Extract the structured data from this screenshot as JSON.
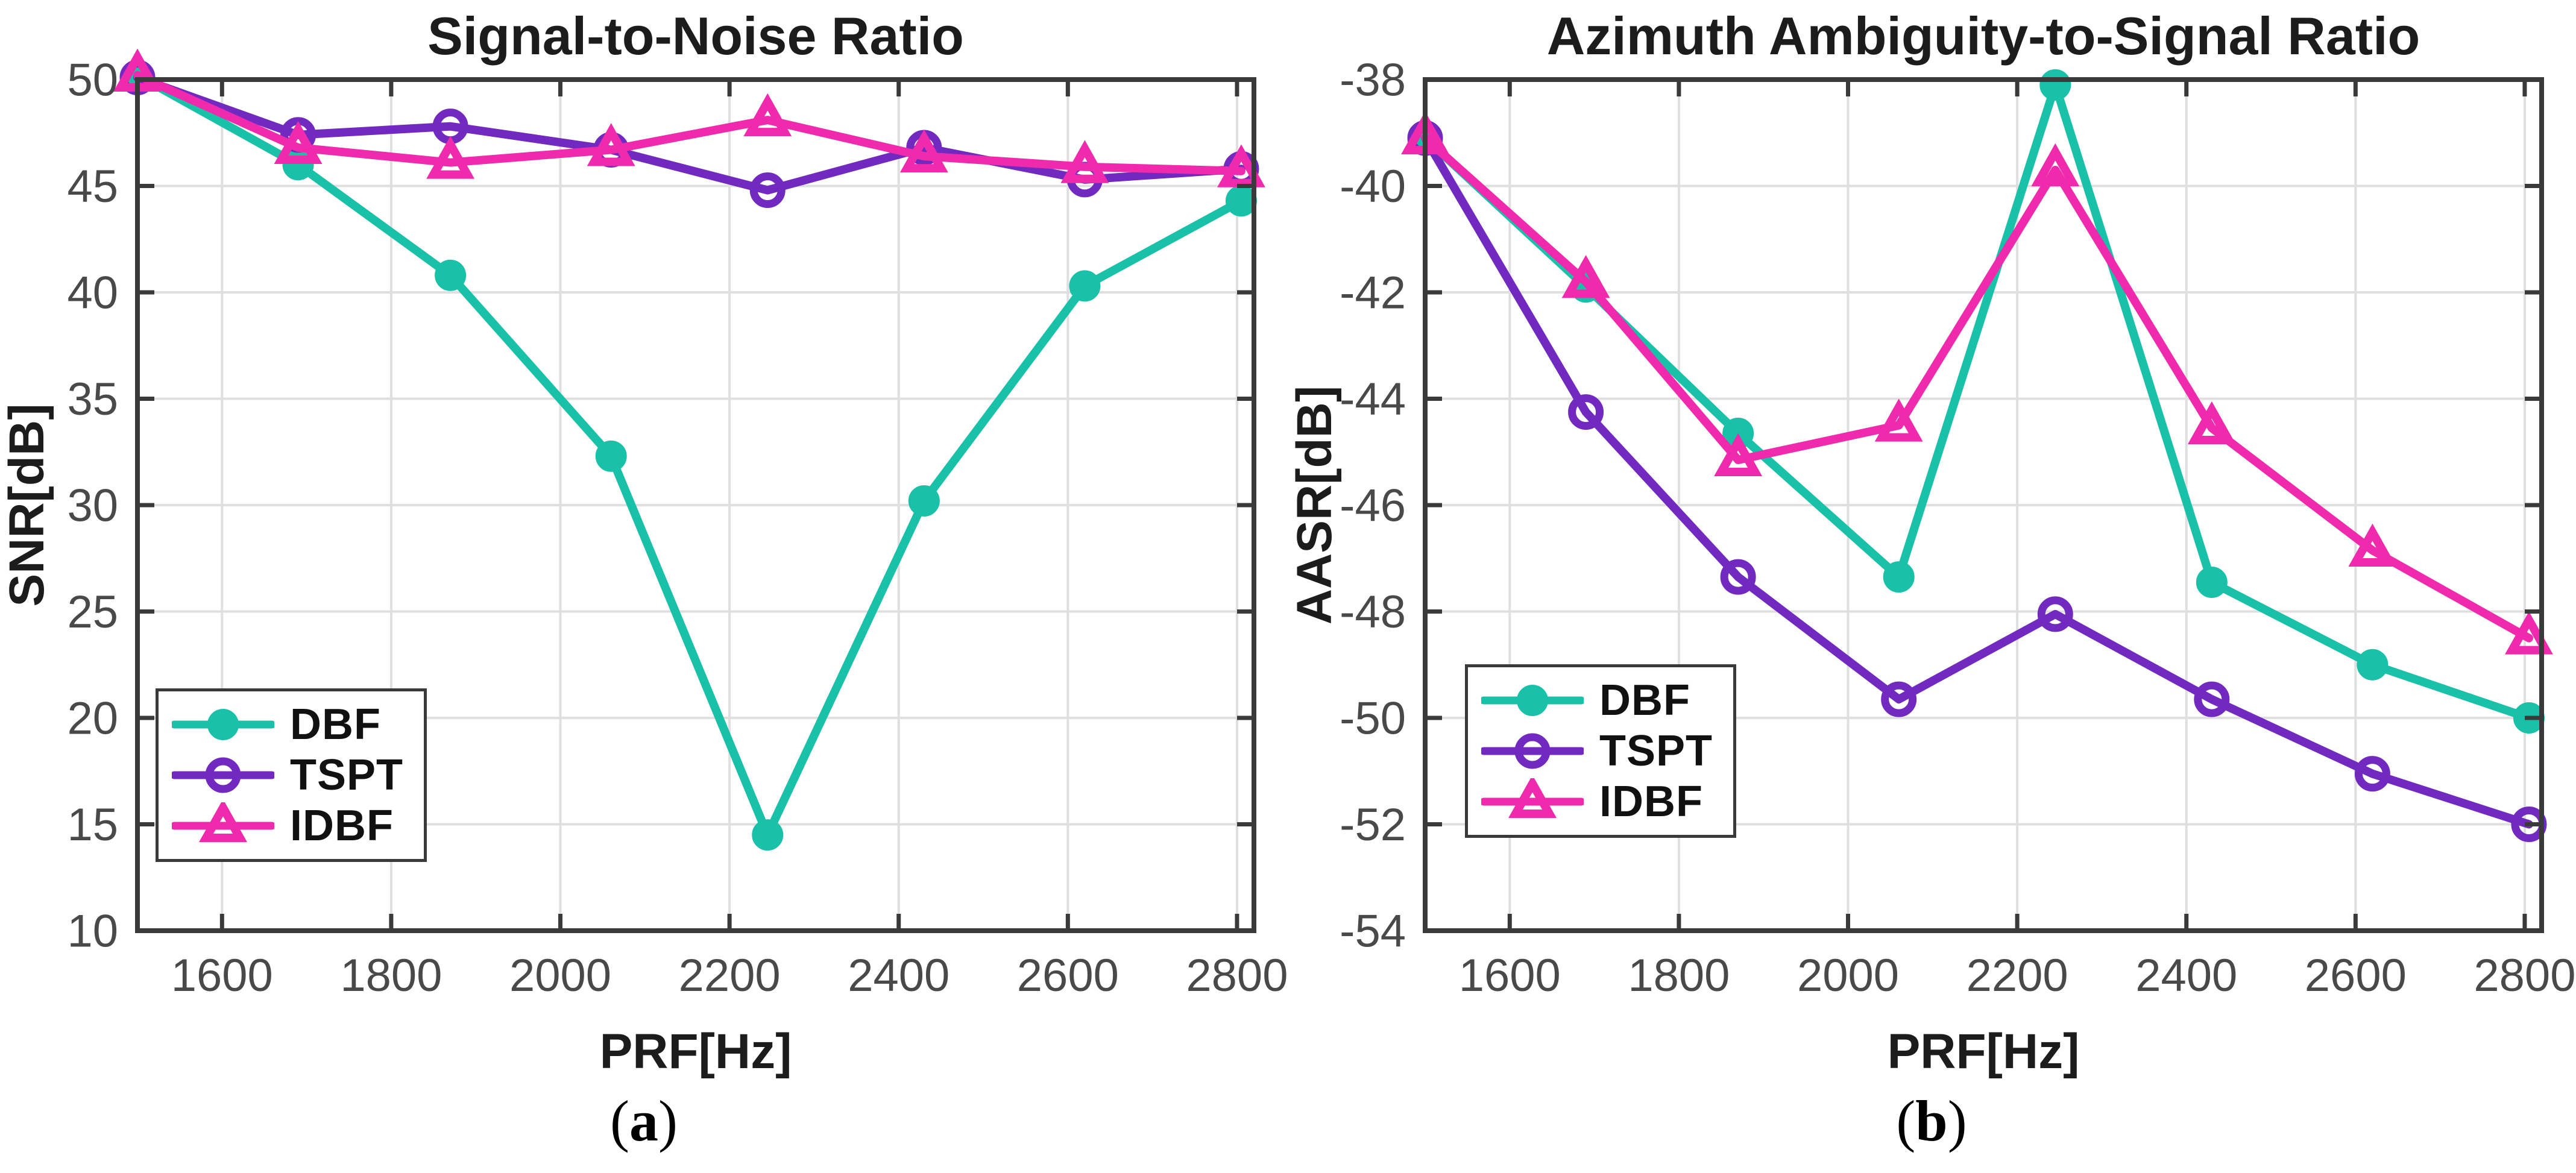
{
  "page": {
    "background": "#ffffff"
  },
  "colors": {
    "dbf": "#18C1A8",
    "tspt": "#7129BF",
    "idbf": "#F02AAC",
    "grid": "#DFDFDF",
    "axis_box": "#3a3a3a",
    "tick_text": "#494949",
    "label_text": "#1c1c1c",
    "legend_border": "#3a3a3a"
  },
  "captions": {
    "a_open": "(",
    "a_letter": "a",
    "a_close": ")",
    "b_open": "(",
    "b_letter": "b",
    "b_close": ")"
  },
  "chart_data": [
    {
      "type": "line",
      "title": "Signal-to-Noise Ratio",
      "xlabel": "PRF[Hz]",
      "ylabel": "SNR[dB]",
      "caption": "(a)",
      "xlim": [
        1500,
        2820
      ],
      "ylim": [
        10,
        50
      ],
      "xticks": [
        1600,
        1800,
        2000,
        2200,
        2400,
        2600,
        2800
      ],
      "yticks": [
        10,
        15,
        20,
        25,
        30,
        35,
        40,
        45,
        50
      ],
      "grid": true,
      "legend_position": "lower-left",
      "x": [
        1500,
        1690,
        1870,
        2060,
        2245,
        2430,
        2620,
        2805
      ],
      "series": [
        {
          "name": "DBF",
          "marker": "filled-circle",
          "color_key": "dbf",
          "values": [
            50.2,
            46.0,
            40.8,
            32.3,
            14.5,
            30.2,
            40.3,
            44.3
          ]
        },
        {
          "name": "TSPT",
          "marker": "open-circle",
          "color_key": "tspt",
          "values": [
            50.1,
            47.4,
            47.8,
            46.7,
            44.8,
            46.8,
            45.3,
            45.8
          ]
        },
        {
          "name": "IDBF",
          "marker": "open-triangle",
          "color_key": "idbf",
          "values": [
            50.2,
            46.8,
            46.1,
            46.7,
            48.1,
            46.4,
            45.9,
            45.7
          ]
        }
      ]
    },
    {
      "type": "line",
      "title": "Azimuth Ambiguity-to-Signal Ratio",
      "xlabel": "PRF[Hz]",
      "ylabel": "AASR[dB]",
      "caption": "(b)",
      "xlim": [
        1500,
        2820
      ],
      "ylim": [
        -54,
        -38
      ],
      "xticks": [
        1600,
        1800,
        2000,
        2200,
        2400,
        2600,
        2800
      ],
      "yticks": [
        -54,
        -52,
        -50,
        -48,
        -46,
        -44,
        -42,
        -40,
        -38
      ],
      "grid": true,
      "legend_position": "lower-left",
      "x": [
        1500,
        1690,
        1870,
        2060,
        2245,
        2430,
        2620,
        2805
      ],
      "series": [
        {
          "name": "DBF",
          "marker": "filled-circle",
          "color_key": "dbf",
          "values": [
            -39.1,
            -41.9,
            -44.65,
            -47.35,
            -38.1,
            -47.45,
            -49.0,
            -50.0
          ]
        },
        {
          "name": "TSPT",
          "marker": "open-circle",
          "color_key": "tspt",
          "values": [
            -39.1,
            -44.25,
            -47.35,
            -49.65,
            -48.05,
            -49.65,
            -51.05,
            -52.0
          ]
        },
        {
          "name": "IDBF",
          "marker": "open-triangle",
          "color_key": "idbf",
          "values": [
            -39.1,
            -41.8,
            -45.15,
            -44.5,
            -39.7,
            -44.55,
            -46.85,
            -48.5
          ]
        }
      ]
    }
  ]
}
